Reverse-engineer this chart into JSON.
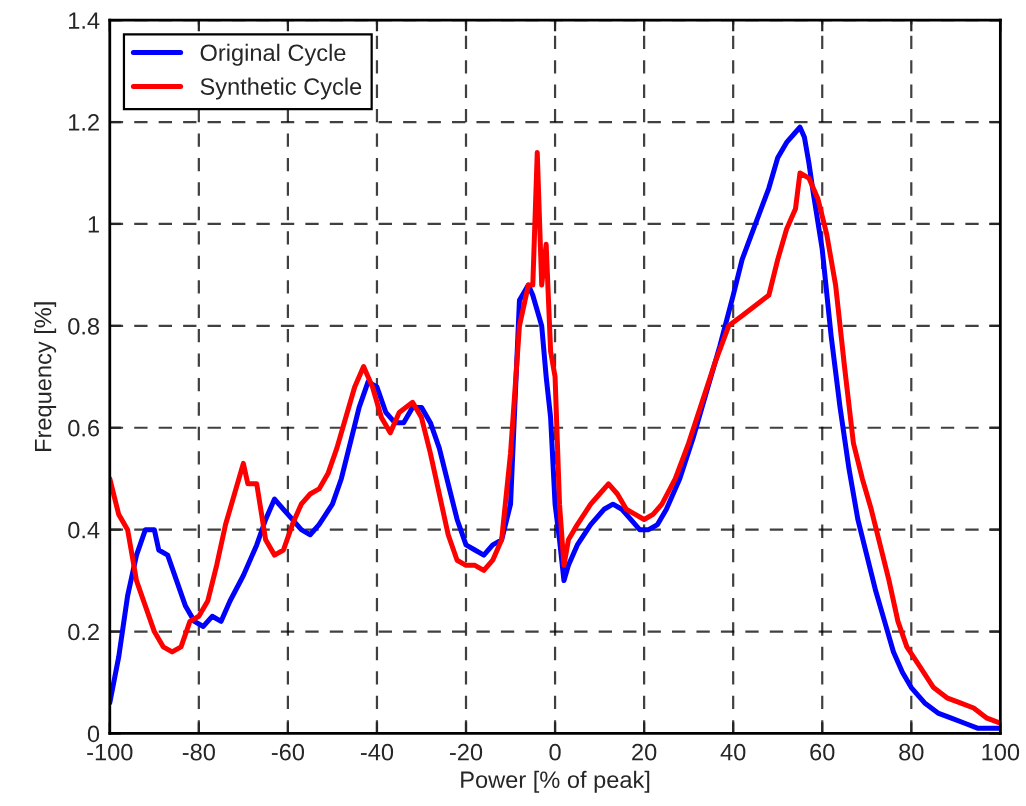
{
  "chart_data": {
    "type": "line",
    "xlabel": "Power [% of peak]",
    "ylabel": "Frequency [%]",
    "xlim": [
      -100,
      100
    ],
    "xticks": [
      -100,
      -80,
      -60,
      -40,
      -20,
      0,
      20,
      40,
      60,
      80,
      100
    ],
    "ylim": [
      0,
      1.4
    ],
    "yticks": [
      0,
      0.2,
      0.4,
      0.6,
      0.8,
      1,
      1.2,
      1.4
    ],
    "grid": true,
    "legend": "top left",
    "line_style": "solid",
    "series": [
      {
        "name": "Original Cycle",
        "color": "#0000ff",
        "x": [
          -100,
          -98,
          -96,
          -94,
          -92,
          -90,
          -89,
          -87,
          -85,
          -83,
          -81,
          -79,
          -77,
          -75,
          -73,
          -70,
          -67,
          -65,
          -63,
          -61,
          -59,
          -57,
          -55,
          -53,
          -50,
          -48,
          -46,
          -44,
          -42,
          -40,
          -38,
          -36,
          -34,
          -32,
          -30,
          -28,
          -26,
          -24,
          -22,
          -20,
          -18,
          -16,
          -14,
          -12,
          -10,
          -8,
          -6,
          -5,
          -4,
          -3,
          -2,
          -1,
          0,
          1,
          2,
          3,
          5,
          8,
          11,
          13,
          15,
          17,
          19,
          21,
          23,
          25,
          28,
          31,
          34,
          37,
          40,
          42,
          45,
          48,
          50,
          52,
          54,
          55,
          56,
          57,
          58,
          60,
          62,
          64,
          66,
          68,
          70,
          72,
          74,
          76,
          78,
          80,
          83,
          86,
          89,
          92,
          95,
          98,
          100
        ],
        "values": [
          0.06,
          0.15,
          0.27,
          0.35,
          0.4,
          0.4,
          0.36,
          0.35,
          0.3,
          0.25,
          0.22,
          0.21,
          0.23,
          0.22,
          0.26,
          0.31,
          0.37,
          0.42,
          0.46,
          0.44,
          0.42,
          0.4,
          0.39,
          0.41,
          0.45,
          0.5,
          0.57,
          0.64,
          0.69,
          0.68,
          0.63,
          0.61,
          0.61,
          0.64,
          0.64,
          0.61,
          0.56,
          0.49,
          0.42,
          0.37,
          0.36,
          0.35,
          0.37,
          0.38,
          0.45,
          0.85,
          0.88,
          0.86,
          null,
          0.8,
          0.7,
          0.62,
          0.45,
          0.38,
          0.3,
          0.33,
          0.37,
          0.41,
          0.44,
          0.45,
          0.44,
          0.42,
          0.4,
          0.4,
          0.41,
          0.44,
          0.5,
          0.58,
          0.67,
          0.76,
          0.86,
          0.93,
          1.0,
          1.07,
          1.13,
          1.16,
          1.18,
          1.19,
          1.17,
          1.12,
          1.06,
          0.95,
          0.78,
          0.64,
          0.52,
          0.42,
          0.35,
          0.28,
          0.22,
          0.16,
          0.12,
          0.09,
          0.06,
          0.04,
          0.03,
          0.02,
          0.01,
          0.01,
          0.01
        ]
      },
      {
        "name": "Synthetic Cycle",
        "color": "#ff0000",
        "x": [
          -100,
          -98,
          -96,
          -94,
          -92,
          -90,
          -88,
          -86,
          -84,
          -82,
          -80,
          -78,
          -76,
          -74,
          -72,
          -70,
          -69,
          -67,
          -65,
          -63,
          -61,
          -59,
          -57,
          -55,
          -53,
          -51,
          -49,
          -47,
          -45,
          -43,
          -41,
          -39,
          -37,
          -35,
          -32,
          -30,
          -28,
          -26,
          -24,
          -22,
          -20,
          -18,
          -16,
          -14,
          -12,
          -10,
          -8,
          -6,
          -5,
          -4,
          -3,
          -2,
          -1,
          0,
          1,
          2,
          3,
          5,
          8,
          10,
          12,
          14,
          16,
          18,
          20,
          22,
          24,
          27,
          30,
          33,
          36,
          39,
          42,
          45,
          48,
          50,
          52,
          54,
          55,
          57,
          59,
          61,
          63,
          65,
          67,
          69,
          71,
          73,
          75,
          77,
          79,
          82,
          85,
          88,
          91,
          94,
          97,
          100
        ],
        "values": [
          0.5,
          0.43,
          0.4,
          0.3,
          0.25,
          0.2,
          0.17,
          0.16,
          0.17,
          0.22,
          0.23,
          0.26,
          0.33,
          0.41,
          0.47,
          0.53,
          0.49,
          0.49,
          0.38,
          0.35,
          0.36,
          0.41,
          0.45,
          0.47,
          0.48,
          0.51,
          0.56,
          0.62,
          0.68,
          0.72,
          0.68,
          0.62,
          0.59,
          0.63,
          0.65,
          0.62,
          0.55,
          0.47,
          0.39,
          0.34,
          0.33,
          0.33,
          0.32,
          0.34,
          0.38,
          0.55,
          0.8,
          0.88,
          0.88,
          1.14,
          0.88,
          0.96,
          0.75,
          0.7,
          0.45,
          0.33,
          0.38,
          0.41,
          0.45,
          0.47,
          0.49,
          0.47,
          0.44,
          0.43,
          0.42,
          0.43,
          0.45,
          0.5,
          0.57,
          0.65,
          0.73,
          0.8,
          0.82,
          0.84,
          0.86,
          0.93,
          0.99,
          1.03,
          1.1,
          1.09,
          1.05,
          0.98,
          0.88,
          0.72,
          0.57,
          0.5,
          0.44,
          0.37,
          0.3,
          0.22,
          0.17,
          0.13,
          0.09,
          0.07,
          0.06,
          0.05,
          0.03,
          0.02
        ]
      }
    ]
  }
}
